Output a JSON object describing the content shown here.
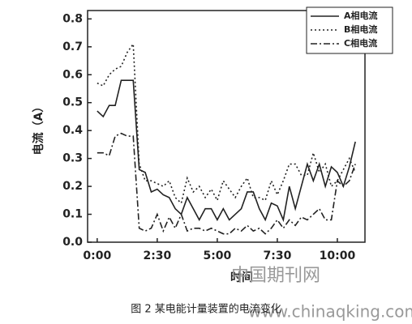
{
  "chart_data": {
    "type": "line",
    "caption": "图 2  某电能计量装置的电流变化",
    "xlabel": "时间",
    "ylabel": "电流（A）",
    "watermark": [
      "中国期刊网",
      "www.chinaqking.com"
    ],
    "x": [
      0,
      0.25,
      0.5,
      0.75,
      1,
      1.25,
      1.5,
      1.75,
      2,
      2.25,
      2.5,
      2.75,
      3,
      3.25,
      3.5,
      3.75,
      4,
      4.25,
      4.5,
      4.75,
      5,
      5.25,
      5.5,
      5.75,
      6,
      6.25,
      6.5,
      6.75,
      7,
      7.25,
      7.5,
      7.75,
      8,
      8.25,
      8.5,
      8.75,
      9,
      9.25,
      9.5,
      9.75,
      10,
      10.25,
      10.5,
      10.75
    ],
    "series": [
      {
        "name": "A相电流",
        "color": "#222222",
        "dash": "none",
        "values": [
          0.47,
          0.45,
          0.49,
          0.49,
          0.58,
          0.58,
          0.58,
          0.26,
          0.25,
          0.18,
          0.19,
          0.17,
          0.16,
          0.12,
          0.1,
          0.16,
          0.12,
          0.08,
          0.12,
          0.12,
          0.08,
          0.12,
          0.08,
          0.1,
          0.12,
          0.18,
          0.18,
          0.12,
          0.08,
          0.14,
          0.13,
          0.08,
          0.2,
          0.12,
          0.2,
          0.28,
          0.22,
          0.28,
          0.2,
          0.27,
          0.25,
          0.2,
          0.27,
          0.36
        ]
      },
      {
        "name": "B相电流",
        "color": "#222222",
        "dash": "2,3",
        "values": [
          0.57,
          0.56,
          0.6,
          0.62,
          0.63,
          0.68,
          0.71,
          0.28,
          0.22,
          0.22,
          0.21,
          0.2,
          0.22,
          0.16,
          0.14,
          0.23,
          0.18,
          0.2,
          0.16,
          0.19,
          0.15,
          0.22,
          0.19,
          0.16,
          0.2,
          0.23,
          0.16,
          0.16,
          0.15,
          0.22,
          0.17,
          0.22,
          0.28,
          0.28,
          0.24,
          0.24,
          0.32,
          0.25,
          0.28,
          0.2,
          0.22,
          0.26,
          0.3,
          0.25
        ]
      },
      {
        "name": "C相电流",
        "color": "#222222",
        "dash": "8,3,2,3",
        "values": [
          0.32,
          0.32,
          0.31,
          0.38,
          0.39,
          0.38,
          0.38,
          0.05,
          0.04,
          0.05,
          0.1,
          0.04,
          0.09,
          0.05,
          0.1,
          0.04,
          0.05,
          0.05,
          0.04,
          0.05,
          0.04,
          0.03,
          0.03,
          0.05,
          0.04,
          0.06,
          0.04,
          0.05,
          0.03,
          0.05,
          0.08,
          0.05,
          0.08,
          0.06,
          0.09,
          0.08,
          0.1,
          0.12,
          0.08,
          0.08,
          0.22,
          0.2,
          0.22,
          0.28
        ]
      }
    ],
    "xlim": [
      -0.4,
      11.15
    ],
    "xticks": [
      {
        "value": 0,
        "label": "0:00"
      },
      {
        "value": 2.5,
        "label": "2:30"
      },
      {
        "value": 5,
        "label": "5:00"
      },
      {
        "value": 7.5,
        "label": "7:30"
      },
      {
        "value": 10,
        "label": "10:00"
      }
    ],
    "ylim": [
      0,
      0.83
    ],
    "yticks": [
      {
        "value": 0,
        "label": "0.0"
      },
      0.1,
      0.2,
      0.3,
      0.4,
      0.5,
      0.6,
      0.7,
      0.8
    ],
    "legend": "upper right",
    "grid": false
  }
}
